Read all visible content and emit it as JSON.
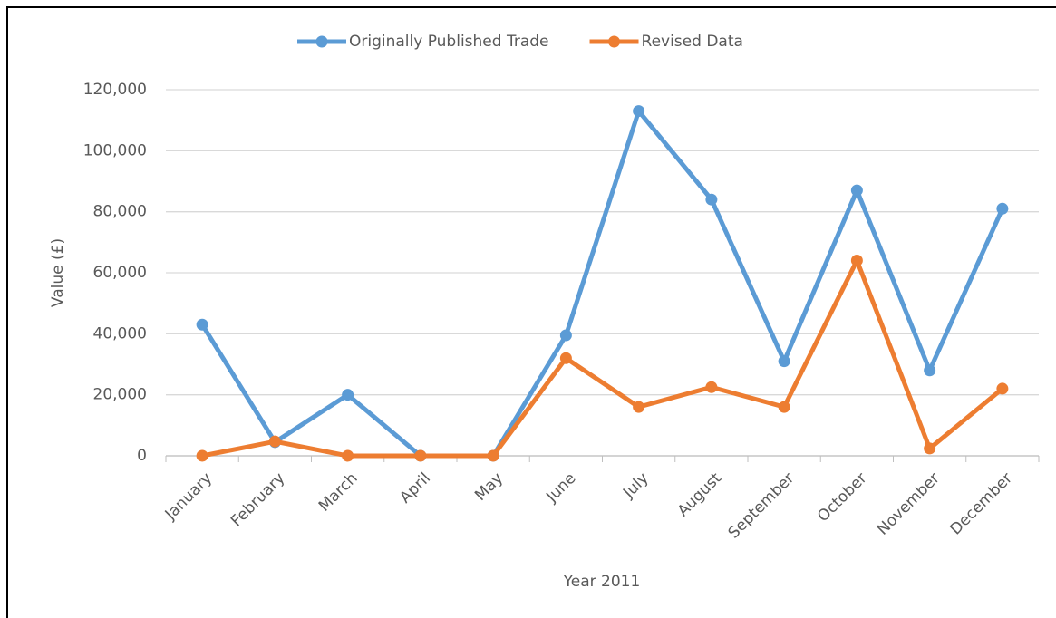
{
  "chart_data": {
    "type": "line",
    "categories": [
      "January",
      "February",
      "March",
      "April",
      "May",
      "June",
      "July",
      "August",
      "September",
      "October",
      "November",
      "December"
    ],
    "series": [
      {
        "name": "Originally Published Trade",
        "color": "#5b9bd5",
        "values": [
          43000,
          4500,
          20000,
          0,
          0,
          39500,
          113000,
          84000,
          31000,
          87000,
          28000,
          81000
        ]
      },
      {
        "name": "Revised Data",
        "color": "#ed7d31",
        "values": [
          0,
          4700,
          0,
          0,
          0,
          32000,
          16000,
          22500,
          16000,
          64000,
          2400,
          22000
        ]
      }
    ],
    "ylim": [
      0,
      120000
    ],
    "yticks": [
      0,
      {
        "value": 20000,
        "label": "20,000"
      },
      {
        "value": 40000,
        "label": "40,000"
      },
      {
        "value": 60000,
        "label": "60,000"
      },
      {
        "value": 80000,
        "label": "80,000"
      },
      {
        "value": 100000,
        "label": "100,000"
      },
      {
        "value": 120000,
        "label": "120,000"
      }
    ],
    "y_label": "Value (£)",
    "x_label": "Year 2011",
    "grid": true,
    "legend": "top"
  }
}
